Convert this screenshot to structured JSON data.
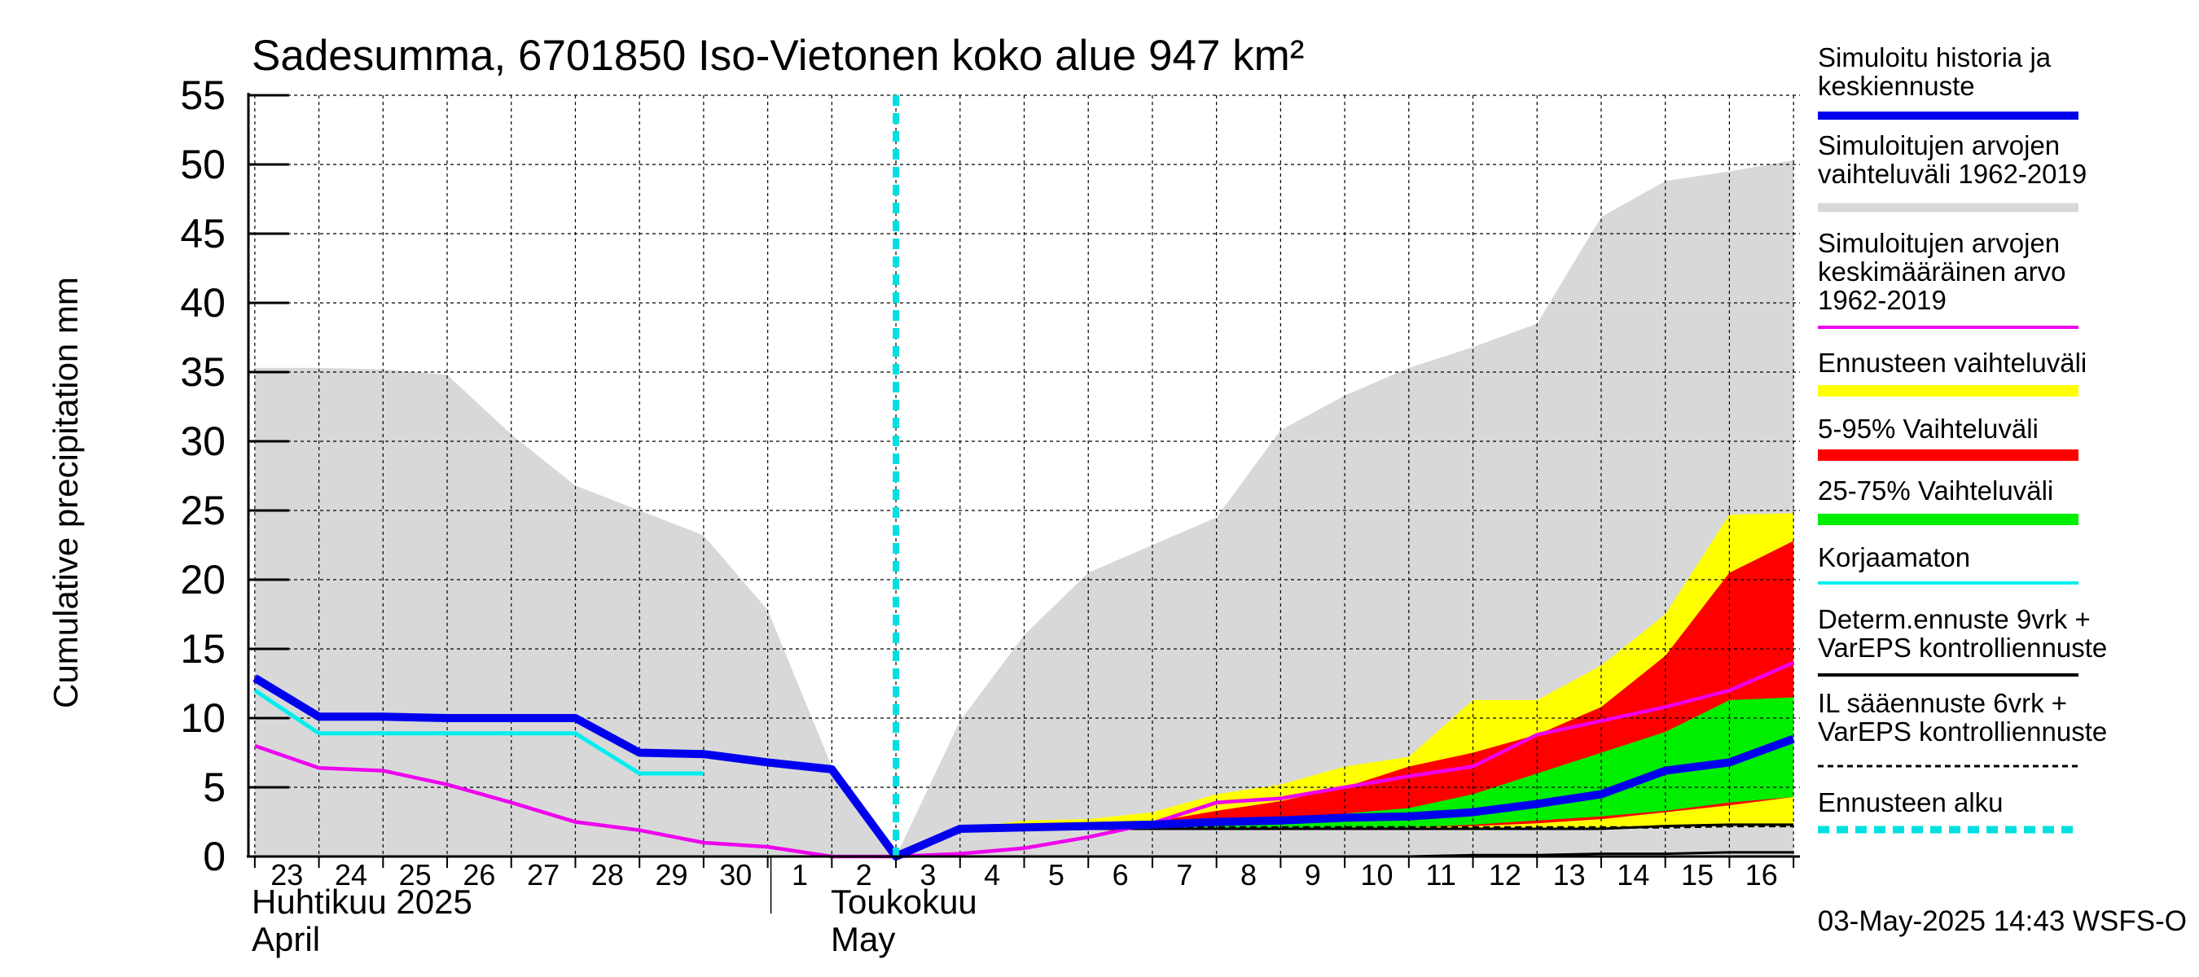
{
  "chart_data": {
    "type": "area",
    "title": "Sadesumma, 6701850 Iso-Vietonen koko alue 947 km²",
    "ylabel": "Cumulative precipitation   mm",
    "ylim": [
      0,
      55
    ],
    "yticks": [
      0,
      5,
      10,
      15,
      20,
      25,
      30,
      35,
      40,
      45,
      50,
      55
    ],
    "x_days": [
      -10,
      -9,
      -8,
      -7,
      -6,
      -5,
      -4,
      -3,
      -2,
      -1,
      0,
      1,
      2,
      3,
      4,
      5,
      6,
      7,
      8,
      9,
      10,
      11,
      12,
      13,
      14
    ],
    "x_range": [
      -10.1,
      14.1
    ],
    "x_tick_labels": [
      "23",
      "24",
      "25",
      "26",
      "27",
      "28",
      "29",
      "30",
      "1",
      "2",
      "3",
      "4",
      "5",
      "6",
      "7",
      "8",
      "9",
      "10",
      "11",
      "12",
      "13",
      "14",
      "15",
      "16"
    ],
    "month_labels": {
      "april_fi": "Huhtikuu  2025",
      "april_en": "April",
      "may_fi": "Toukokuu",
      "may_en": "May"
    },
    "forecast_start_day": 0,
    "grid": true,
    "legend_position": "right",
    "timestamp": "03-May-2025 14:43 WSFS-O",
    "colors": {
      "history_range": "#d8d8d8",
      "forecast_range": "#ffff00",
      "p5_95": "#ff0000",
      "p25_75": "#00ee00",
      "simulated": "#0000ee",
      "mean": "#ee00ee",
      "uncorrected": "#00eeee",
      "forecast_start": "#00e0e0"
    },
    "series": [
      {
        "key": "history_range_upper",
        "values": [
          35.3,
          35.3,
          35.2,
          34.8,
          30.5,
          26.8,
          25.0,
          23.2,
          17.8,
          6.5,
          0,
          9.8,
          16.0,
          20.5,
          22.5,
          24.5,
          30.8,
          33.3,
          35.3,
          36.8,
          38.5,
          46.2,
          48.8,
          49.5,
          50.3
        ]
      },
      {
        "key": "forecast_range_upper",
        "values": [
          null,
          null,
          null,
          null,
          null,
          null,
          null,
          null,
          null,
          null,
          0,
          2.0,
          2.6,
          2.7,
          3.2,
          4.5,
          5.2,
          6.5,
          7.2,
          11.3,
          11.3,
          13.8,
          17.5,
          24.7,
          24.8
        ]
      },
      {
        "key": "forecast_range_lower",
        "values": [
          null,
          null,
          null,
          null,
          null,
          null,
          null,
          null,
          null,
          null,
          0,
          2.0,
          2.0,
          2.0,
          2.0,
          2.0,
          2.0,
          2.0,
          2.0,
          2.0,
          2.0,
          2.0,
          2.1,
          2.2,
          2.2
        ]
      },
      {
        "key": "p5_95_upper",
        "values": [
          null,
          null,
          null,
          null,
          null,
          null,
          null,
          null,
          null,
          null,
          0,
          2.0,
          2.2,
          2.3,
          2.5,
          3.3,
          4.0,
          5.0,
          6.5,
          7.5,
          8.8,
          10.8,
          14.5,
          20.5,
          22.8
        ]
      },
      {
        "key": "p5_95_lower",
        "values": [
          null,
          null,
          null,
          null,
          null,
          null,
          null,
          null,
          null,
          null,
          0,
          2.0,
          2.0,
          2.0,
          2.0,
          2.0,
          2.0,
          2.1,
          2.1,
          2.2,
          2.4,
          2.7,
          3.2,
          3.7,
          4.3
        ]
      },
      {
        "key": "p25_75_upper",
        "values": [
          null,
          null,
          null,
          null,
          null,
          null,
          null,
          null,
          null,
          null,
          0,
          2.0,
          2.1,
          2.1,
          2.3,
          2.5,
          2.8,
          3.1,
          3.5,
          4.5,
          6.0,
          7.5,
          9.0,
          11.3,
          11.5
        ]
      },
      {
        "key": "p25_75_lower",
        "values": [
          null,
          null,
          null,
          null,
          null,
          null,
          null,
          null,
          null,
          null,
          0,
          2.0,
          2.0,
          2.0,
          2.0,
          2.0,
          2.0,
          2.1,
          2.1,
          2.3,
          2.6,
          2.9,
          3.3,
          3.9,
          4.3
        ]
      },
      {
        "key": "mean",
        "name": "Simuloitujen arvojen keskimääräinen arvo 1962-2019",
        "values": [
          8.0,
          6.4,
          6.2,
          5.2,
          3.9,
          2.5,
          1.9,
          1.0,
          0.7,
          0.0,
          0,
          0.2,
          0.6,
          1.4,
          2.4,
          3.9,
          4.2,
          5.0,
          5.8,
          6.5,
          8.8,
          9.8,
          10.8,
          12.0,
          14.0
        ]
      },
      {
        "key": "uncorrected",
        "name": "Korjaamaton",
        "values": [
          12.0,
          8.9,
          8.9,
          8.9,
          8.9,
          8.9,
          6.0,
          6.0,
          null,
          null,
          null,
          null,
          null,
          null,
          null,
          null,
          null,
          null,
          null,
          null,
          null,
          null,
          null,
          null,
          null
        ]
      },
      {
        "key": "simulated",
        "name": "Simuloitu historia ja keskiennuste",
        "values": [
          12.9,
          10.1,
          10.1,
          10.0,
          10.0,
          10.0,
          7.5,
          7.4,
          6.8,
          6.3,
          0,
          2.0,
          2.1,
          2.2,
          2.3,
          2.5,
          2.6,
          2.8,
          2.9,
          3.2,
          3.8,
          4.5,
          6.2,
          6.8,
          8.5
        ]
      },
      {
        "key": "determ",
        "name": "Determ.ennuste 9vrk + VarEPS kontrolliennuste",
        "values": [
          null,
          null,
          null,
          null,
          null,
          null,
          null,
          null,
          null,
          null,
          0,
          2.0,
          2.0,
          2.0,
          2.0,
          2.0,
          2.0,
          2.0,
          2.0,
          2.0,
          2.0,
          2.0,
          2.2,
          2.3,
          2.3
        ]
      },
      {
        "key": "il",
        "name": "IL sääennuste 6vrk + VarEPS kontrolliennuste",
        "values": [
          null,
          null,
          null,
          null,
          null,
          null,
          null,
          null,
          null,
          null,
          0,
          2.0,
          2.0,
          2.1,
          2.1,
          2.1,
          2.1,
          2.1,
          2.1,
          2.1,
          2.1,
          2.1,
          2.1,
          2.2,
          2.2
        ]
      },
      {
        "key": "bottom_thin",
        "values": [
          null,
          null,
          null,
          null,
          null,
          null,
          null,
          null,
          null,
          null,
          null,
          null,
          null,
          null,
          null,
          null,
          null,
          null,
          0.0,
          0.1,
          0.1,
          0.2,
          0.2,
          0.3,
          0.3
        ]
      }
    ]
  },
  "legend": [
    {
      "lines": [
        "Simuloitu historia ja",
        "keskiennuste"
      ],
      "swatch": "thick",
      "color": "#0000ee"
    },
    {
      "lines": [
        "Simuloitujen arvojen",
        "vaihteluväli 1962-2019"
      ],
      "swatch": "thin_bar",
      "color": "#d8d8d8"
    },
    {
      "lines": [
        "Simuloitujen arvojen",
        "keskimääräinen arvo",
        "   1962-2019"
      ],
      "swatch": "line",
      "color": "#ee00ee"
    },
    {
      "lines": [
        "Ennusteen vaihteluväli"
      ],
      "swatch": "bar",
      "color": "#ffff00"
    },
    {
      "lines": [
        "5-95% Vaihteluväli"
      ],
      "swatch": "bar",
      "color": "#ff0000"
    },
    {
      "lines": [
        "25-75% Vaihteluväli"
      ],
      "swatch": "bar",
      "color": "#00ee00"
    },
    {
      "lines": [
        "Korjaamaton"
      ],
      "swatch": "line",
      "color": "#00eeee"
    },
    {
      "lines": [
        "Determ.ennuste 9vrk +",
        "VarEPS kontrolliennuste"
      ],
      "swatch": "line",
      "color": "#000000"
    },
    {
      "lines": [
        "IL sääennuste 6vrk  +",
        "  VarEPS kontrolliennuste"
      ],
      "swatch": "dashed",
      "color": "#000000"
    },
    {
      "lines": [
        "Ennusteen alku"
      ],
      "swatch": "dotted",
      "color": "#00e0e0"
    }
  ]
}
